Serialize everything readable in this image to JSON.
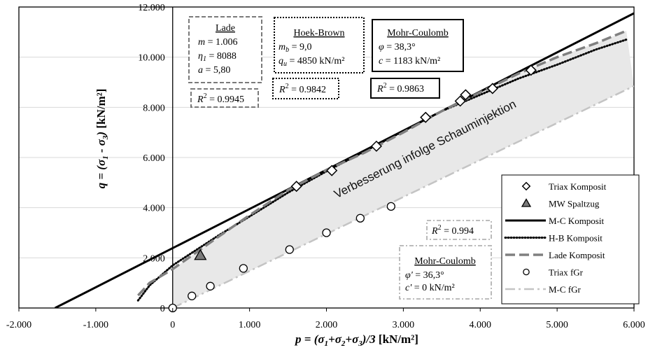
{
  "chart_data": {
    "type": "scatter",
    "xlabel": "p = (σ1+σ2+σ3)/3 [kN/m²]",
    "ylabel": "q = (σ1 - σ3) [kN/m²]",
    "xlim": [
      -2000,
      6000
    ],
    "ylim": [
      0,
      12000
    ],
    "x_ticks": [
      "-2.000",
      "-1.000",
      "0",
      "1.000",
      "2.000",
      "3.000",
      "4.000",
      "5.000",
      "6.000"
    ],
    "y_ticks": [
      "0",
      "2.000",
      "4.000",
      "6.000",
      "8.000",
      "10.000",
      "12.000"
    ],
    "grid": "horizontal",
    "legend_position": "bottom-right",
    "annotation": "Verbesserung infolge Schauminjektion",
    "series": [
      {
        "name": "Triax Komposit",
        "kind": "points",
        "marker": "diamond",
        "x": [
          1610,
          2070,
          2650,
          3290,
          3740,
          3810,
          4160,
          4660
        ],
        "y": [
          4850,
          5480,
          6450,
          7600,
          8250,
          8500,
          8750,
          9480
        ]
      },
      {
        "name": "MW Spaltzug",
        "kind": "points",
        "marker": "triangle",
        "x": [
          360
        ],
        "y": [
          2100
        ]
      },
      {
        "name": "M-C Komposit",
        "kind": "line",
        "style": "solid",
        "x": [
          -1530,
          6000
        ],
        "y": [
          0,
          11750
        ]
      },
      {
        "name": "H-B Komposit",
        "kind": "line",
        "style": "dotted",
        "x": [
          -450,
          -300,
          0,
          300,
          600,
          1000,
          1500,
          2000,
          2500,
          3000,
          3500,
          4000,
          4500,
          5000,
          5500,
          5900
        ],
        "y": [
          300,
          900,
          1700,
          2300,
          2900,
          3650,
          4600,
          5450,
          6250,
          7050,
          7850,
          8500,
          9150,
          9700,
          10300,
          10700
        ]
      },
      {
        "name": "Lade Komposit",
        "kind": "line",
        "style": "dashed",
        "x": [
          -450,
          -300,
          0,
          300,
          600,
          1000,
          1500,
          2000,
          2500,
          3000,
          3500,
          4000,
          4500,
          5000,
          5500,
          5900
        ],
        "y": [
          500,
          1000,
          1550,
          2200,
          2850,
          3700,
          4700,
          5500,
          6200,
          7000,
          7850,
          8600,
          9350,
          10000,
          10550,
          11050
        ]
      },
      {
        "name": "Triax fGr",
        "kind": "points",
        "marker": "circle",
        "x": [
          0,
          250,
          490,
          920,
          1520,
          2000,
          2440,
          2840
        ],
        "y": [
          0,
          480,
          870,
          1580,
          2330,
          3000,
          3580,
          4050
        ]
      },
      {
        "name": "M-C fGr",
        "kind": "line",
        "style": "dashdot",
        "x": [
          0,
          6000
        ],
        "y": [
          0,
          8850
        ]
      }
    ],
    "fit_boxes": {
      "lade": {
        "title": "Lade",
        "lines": [
          "m = 1.006",
          "η1 = 8088",
          "a = 5,80"
        ],
        "r2": "R² = 0.9945"
      },
      "hoek_brown": {
        "title": "Hoek-Brown",
        "lines": [
          "mb = 9,0",
          "qu = 4850 kN/m²"
        ],
        "r2": "R² = 0.9842"
      },
      "mohr_coulomb": {
        "title": "Mohr-Coulomb",
        "lines": [
          "φ = 38,3°",
          "c = 1183 kN/m²"
        ],
        "r2": "R² = 0.9863"
      },
      "mohr_coulomb_fgr": {
        "title": "Mohr-Coulomb",
        "lines": [
          "φ' = 36,3°",
          "c' = 0 kN/m²"
        ],
        "r2": "R² = 0.994"
      }
    }
  }
}
